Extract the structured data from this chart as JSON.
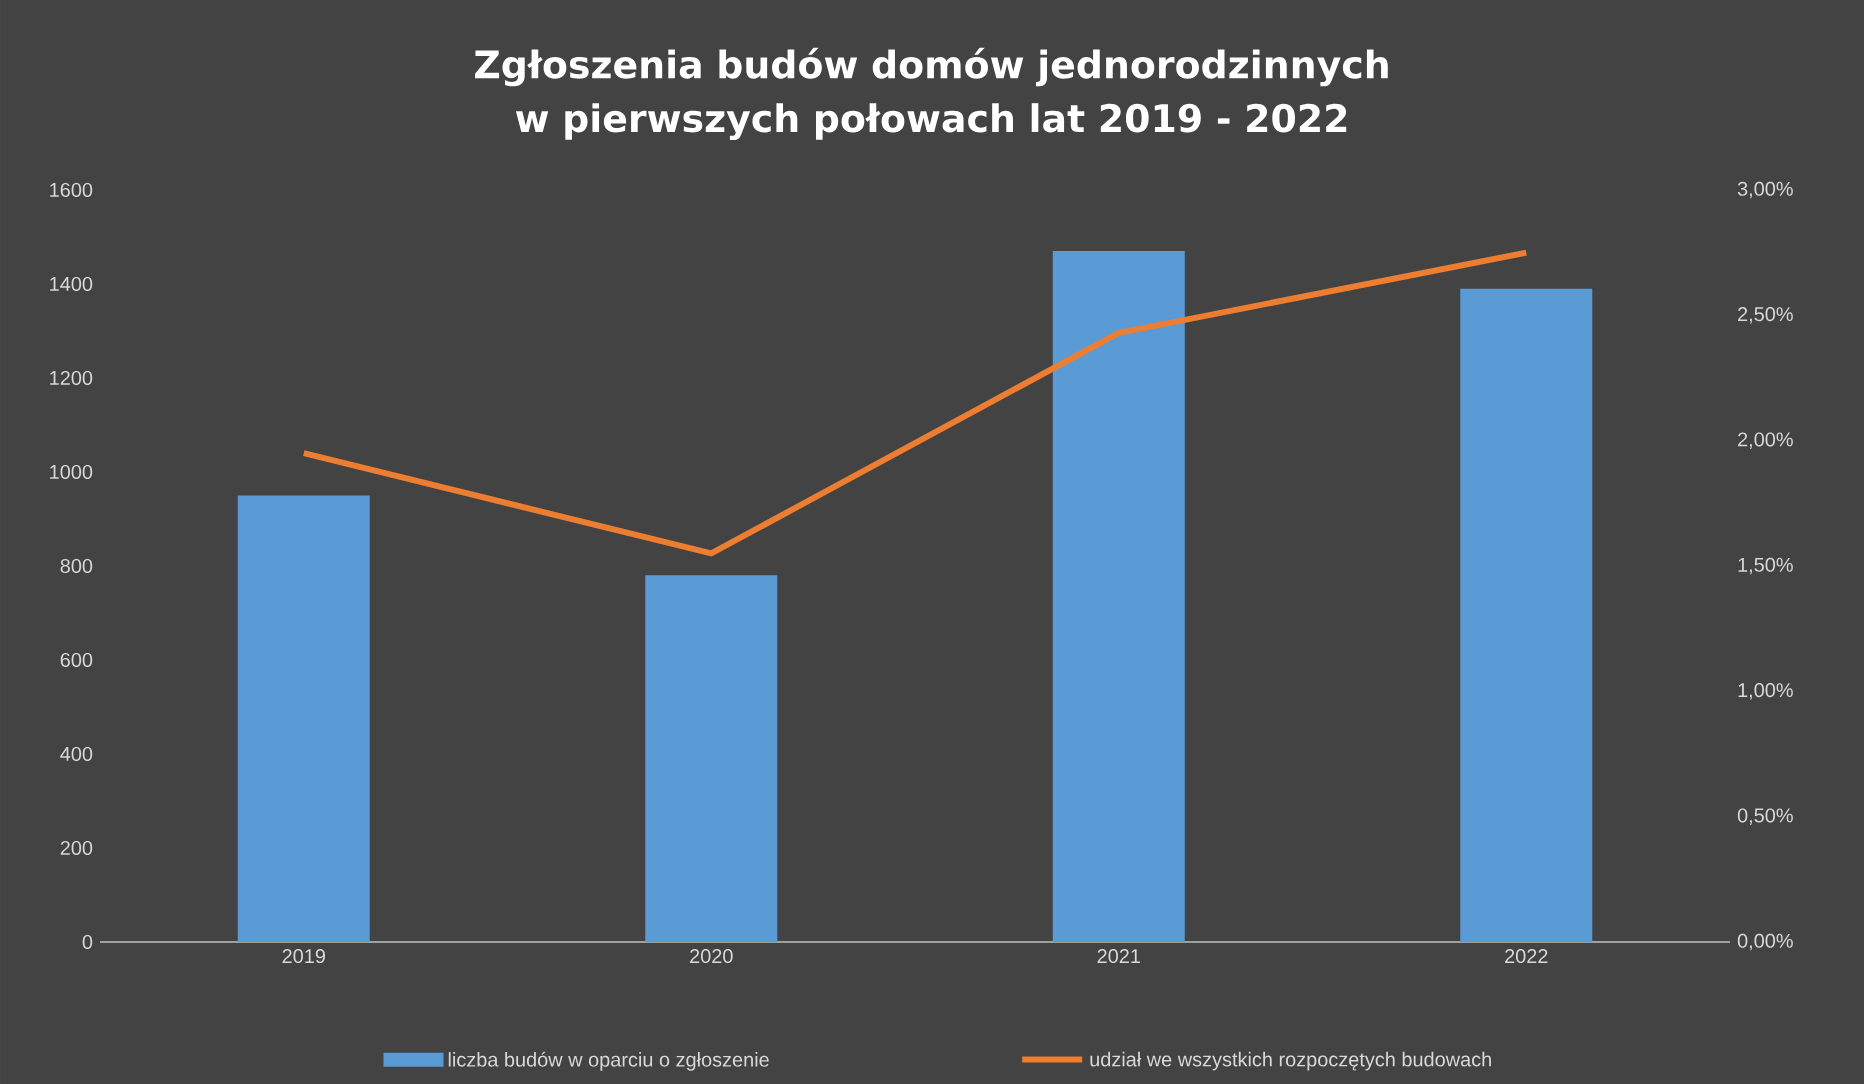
{
  "chart_data": {
    "type": "bar",
    "title": "Zgłoszenia budów domów jednorodzinnych w pierwszych połowach lat 2019 - 2022",
    "categories": [
      "2019",
      "2020",
      "2021",
      "2022"
    ],
    "series": [
      {
        "name": "liczba budów w oparciu o zgłoszenie",
        "color": "#5b9bd5",
        "values": [
          950,
          780,
          1470,
          1390
        ]
      },
      {
        "name": "udział we wszystkich rozpoczętych budowach",
        "type": "line",
        "axis": "y2",
        "color": "#ed7d31",
        "values": [
          1.95,
          1.55,
          2.43,
          2.75
        ]
      }
    ],
    "ylim": [
      0,
      1600
    ],
    "yticks": [
      0,
      200,
      400,
      600,
      800,
      1000,
      1200,
      1400,
      1600
    ],
    "y2lim": [
      0,
      3
    ],
    "y2ticks": [
      {
        "value": 0,
        "label": "0,00%"
      },
      {
        "value": 0.5,
        "label": "0,50%"
      },
      {
        "value": 1,
        "label": "1,00%"
      },
      {
        "value": 1.5,
        "label": "1,50%"
      },
      {
        "value": 2,
        "label": "2,00%"
      },
      {
        "value": 2.5,
        "label": "2,50%"
      },
      {
        "value": 3,
        "label": "3,00%"
      }
    ],
    "legend": "bottom"
  }
}
